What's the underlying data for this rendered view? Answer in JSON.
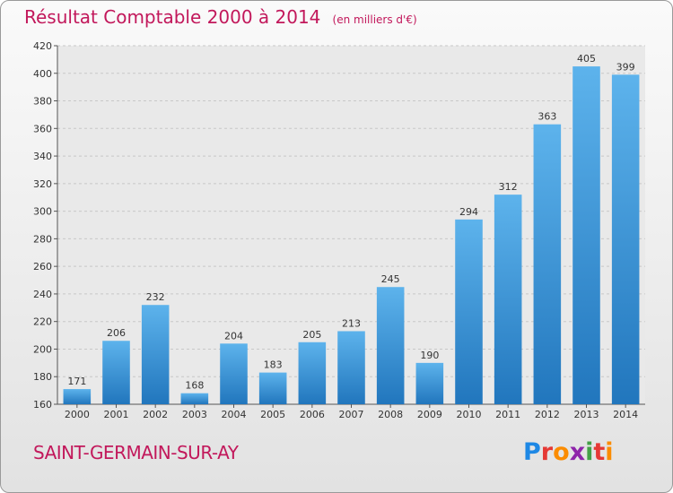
{
  "chart_data": {
    "type": "bar",
    "title": "Résultat Comptable 2000 à 2014",
    "subtitle": "(en milliers d'€)",
    "categories": [
      "2000",
      "2001",
      "2002",
      "2003",
      "2004",
      "2005",
      "2006",
      "2007",
      "2008",
      "2009",
      "2010",
      "2011",
      "2012",
      "2013",
      "2014"
    ],
    "values": [
      171,
      206,
      232,
      168,
      204,
      183,
      205,
      213,
      245,
      190,
      294,
      312,
      363,
      405,
      399
    ],
    "ylim": [
      160,
      420
    ],
    "yticks": [
      160,
      180,
      200,
      220,
      240,
      260,
      280,
      300,
      320,
      340,
      360,
      380,
      400,
      420
    ],
    "grid": true,
    "bar_color": "#3d9ee0"
  },
  "footer": {
    "commune": "SAINT-GERMAIN-SUR-AY",
    "logo_text": "Proxiti"
  },
  "colors": {
    "title": "#c2185b",
    "bar_top": "#5db3ec",
    "bar_bottom": "#2176bd"
  }
}
